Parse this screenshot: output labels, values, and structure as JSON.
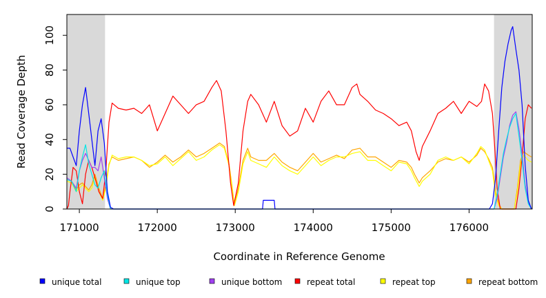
{
  "chart_data": {
    "type": "line",
    "title": "",
    "xlabel": "Coordinate in Reference Genome",
    "ylabel": "Read Coverage Depth",
    "xlim": [
      170840,
      176810
    ],
    "ylim": [
      0,
      112
    ],
    "x_ticks": [
      171000,
      172000,
      173000,
      174000,
      175000,
      176000
    ],
    "x_tick_labels": [
      "171000",
      "172000",
      "173000",
      "174000",
      "175000",
      "176000"
    ],
    "y_ticks": [
      0,
      20,
      40,
      60,
      80,
      100
    ],
    "y_tick_labels": [
      "0",
      "20",
      "40",
      "60",
      "80",
      "100"
    ],
    "grid": false,
    "shaded_regions": [
      {
        "x0": 170840,
        "x1": 171330,
        "color": "#d9d9d9"
      },
      {
        "x0": 176320,
        "x1": 176810,
        "color": "#d9d9d9"
      }
    ],
    "series": [
      {
        "name": "unique total",
        "color": "#0000ff",
        "x": [
          170840,
          170880,
          170920,
          170960,
          171000,
          171040,
          171080,
          171120,
          171160,
          171200,
          171240,
          171280,
          171320,
          171360,
          171400,
          171440,
          173350,
          173360,
          173500,
          173510,
          176200,
          176260,
          176300,
          176340,
          176380,
          176420,
          176460,
          176500,
          176540,
          176560,
          176600,
          176640,
          176680,
          176720,
          176760,
          176800
        ],
        "y": [
          35,
          35,
          30,
          25,
          45,
          60,
          70,
          55,
          40,
          25,
          45,
          52,
          38,
          10,
          1,
          0,
          0,
          5,
          5,
          0,
          0,
          0,
          3,
          18,
          45,
          70,
          85,
          95,
          103,
          105,
          92,
          80,
          60,
          25,
          5,
          0
        ]
      },
      {
        "name": "unique top",
        "color": "#00e5e5",
        "x": [
          170840,
          170900,
          170960,
          171000,
          171040,
          171080,
          171120,
          171160,
          171200,
          171240,
          171280,
          171320,
          171360,
          171400,
          176280,
          176320,
          176360,
          176400,
          176440,
          176480,
          176520,
          176560,
          176600,
          176640,
          176680,
          176720,
          176760,
          176800
        ],
        "y": [
          17,
          16,
          10,
          22,
          30,
          37,
          26,
          20,
          14,
          12,
          18,
          22,
          8,
          0,
          0,
          0,
          8,
          20,
          32,
          40,
          47,
          52,
          55,
          42,
          28,
          12,
          3,
          0
        ]
      },
      {
        "name": "unique bottom",
        "color": "#a040f0",
        "x": [
          170840,
          170900,
          170960,
          171000,
          171040,
          171080,
          171120,
          171160,
          171200,
          171240,
          171280,
          171320,
          171360,
          171400,
          176280,
          176320,
          176360,
          176400,
          176440,
          176480,
          176520,
          176560,
          176600,
          176640,
          176680,
          176720,
          176760,
          176800
        ],
        "y": [
          18,
          16,
          12,
          22,
          28,
          32,
          28,
          24,
          24,
          22,
          30,
          18,
          6,
          0,
          0,
          0,
          6,
          18,
          30,
          38,
          48,
          54,
          56,
          46,
          32,
          14,
          4,
          0
        ]
      },
      {
        "name": "repeat total",
        "color": "#ff0000",
        "x": [
          170840,
          170860,
          170880,
          170920,
          170960,
          171000,
          171040,
          171080,
          171120,
          171160,
          171200,
          171250,
          171300,
          171340,
          171380,
          171420,
          171500,
          171600,
          171700,
          171800,
          171900,
          172000,
          172100,
          172200,
          172300,
          172400,
          172500,
          172600,
          172700,
          172760,
          172820,
          172880,
          172940,
          172980,
          173040,
          173100,
          173160,
          173200,
          173300,
          173400,
          173500,
          173600,
          173700,
          173800,
          173900,
          174000,
          174100,
          174200,
          174300,
          174400,
          174500,
          174560,
          174600,
          174700,
          174800,
          174900,
          175000,
          175100,
          175200,
          175260,
          175320,
          175360,
          175400,
          175500,
          175600,
          175700,
          175800,
          175900,
          176000,
          176100,
          176160,
          176200,
          176250,
          176300,
          176330,
          176360,
          176400,
          176440,
          176480,
          176520,
          176560,
          176600,
          176640,
          176680,
          176720,
          176760,
          176800
        ],
        "y": [
          0,
          2,
          10,
          24,
          22,
          10,
          3,
          20,
          28,
          24,
          18,
          10,
          6,
          22,
          50,
          61,
          58,
          57,
          58,
          55,
          60,
          45,
          55,
          65,
          60,
          55,
          60,
          62,
          70,
          74,
          68,
          45,
          15,
          2,
          15,
          45,
          62,
          66,
          60,
          50,
          62,
          48,
          42,
          45,
          58,
          50,
          62,
          68,
          60,
          60,
          70,
          72,
          66,
          62,
          57,
          55,
          52,
          48,
          50,
          45,
          33,
          28,
          36,
          45,
          55,
          58,
          62,
          55,
          62,
          59,
          62,
          72,
          68,
          55,
          35,
          12,
          0,
          0,
          0,
          0,
          0,
          0,
          12,
          30,
          52,
          60,
          58
        ]
      },
      {
        "name": "repeat top",
        "color": "#ffff00",
        "x": [
          170840,
          170900,
          170960,
          171000,
          171040,
          171080,
          171120,
          171160,
          171200,
          171250,
          171300,
          171340,
          171380,
          171420,
          171500,
          171600,
          171700,
          171800,
          171900,
          172000,
          172100,
          172200,
          172300,
          172400,
          172500,
          172600,
          172700,
          172800,
          172860,
          172920,
          172960,
          172990,
          173040,
          173100,
          173160,
          173200,
          173300,
          173400,
          173500,
          173600,
          173700,
          173800,
          173900,
          174000,
          174100,
          174200,
          174300,
          174400,
          174500,
          174600,
          174700,
          174800,
          174900,
          175000,
          175100,
          175200,
          175260,
          175300,
          175360,
          175400,
          175500,
          175600,
          175700,
          175800,
          175900,
          176000,
          176100,
          176150,
          176200,
          176250,
          176300,
          176340,
          176380,
          176420,
          176460,
          176500,
          176540,
          176580,
          176620,
          176660,
          176700,
          176760,
          176800
        ],
        "y": [
          16,
          15,
          10,
          12,
          14,
          12,
          10,
          12,
          18,
          10,
          5,
          12,
          25,
          31,
          29,
          30,
          30,
          28,
          25,
          26,
          30,
          25,
          29,
          33,
          28,
          30,
          34,
          37,
          35,
          25,
          12,
          2,
          10,
          26,
          33,
          28,
          26,
          24,
          30,
          25,
          22,
          20,
          25,
          30,
          25,
          28,
          30,
          30,
          32,
          33,
          28,
          28,
          25,
          22,
          27,
          26,
          22,
          18,
          13,
          16,
          20,
          28,
          30,
          28,
          30,
          26,
          32,
          36,
          34,
          28,
          22,
          8,
          2,
          0,
          0,
          0,
          0,
          0,
          10,
          26,
          31,
          28,
          27
        ]
      },
      {
        "name": "repeat bottom",
        "color": "#ffa500",
        "x": [
          170840,
          170900,
          170960,
          171000,
          171040,
          171080,
          171120,
          171160,
          171200,
          171250,
          171300,
          171340,
          171380,
          171420,
          171500,
          171600,
          171700,
          171800,
          171900,
          172000,
          172100,
          172200,
          172300,
          172400,
          172500,
          172600,
          172700,
          172800,
          172860,
          172920,
          172960,
          172990,
          173040,
          173100,
          173160,
          173200,
          173300,
          173400,
          173500,
          173600,
          173700,
          173800,
          173900,
          174000,
          174100,
          174200,
          174300,
          174400,
          174500,
          174600,
          174700,
          174800,
          174900,
          175000,
          175100,
          175200,
          175260,
          175300,
          175360,
          175400,
          175500,
          175600,
          175700,
          175800,
          175900,
          176000,
          176100,
          176150,
          176200,
          176250,
          176300,
          176340,
          176380,
          176420,
          176460,
          176500,
          176540,
          176580,
          176620,
          176660,
          176700,
          176760,
          176800
        ],
        "y": [
          17,
          16,
          11,
          14,
          15,
          13,
          11,
          14,
          20,
          12,
          6,
          14,
          26,
          30,
          28,
          29,
          30,
          28,
          24,
          27,
          31,
          27,
          30,
          34,
          30,
          32,
          35,
          38,
          36,
          26,
          13,
          2,
          12,
          28,
          35,
          30,
          28,
          28,
          32,
          27,
          24,
          22,
          27,
          32,
          27,
          29,
          31,
          29,
          34,
          35,
          30,
          30,
          27,
          24,
          28,
          27,
          24,
          20,
          15,
          18,
          22,
          27,
          29,
          28,
          30,
          27,
          31,
          35,
          33,
          29,
          24,
          10,
          3,
          0,
          0,
          0,
          0,
          0,
          12,
          28,
          33,
          31,
          30
        ]
      }
    ]
  },
  "legend": {
    "items": [
      {
        "label": "unique total",
        "color": "#0000ff"
      },
      {
        "label": "unique top",
        "color": "#00e5e5"
      },
      {
        "label": "unique bottom",
        "color": "#a040f0"
      },
      {
        "label": "repeat total",
        "color": "#ff0000"
      },
      {
        "label": "repeat top",
        "color": "#ffff00"
      },
      {
        "label": "repeat bottom",
        "color": "#ffa500"
      }
    ]
  }
}
